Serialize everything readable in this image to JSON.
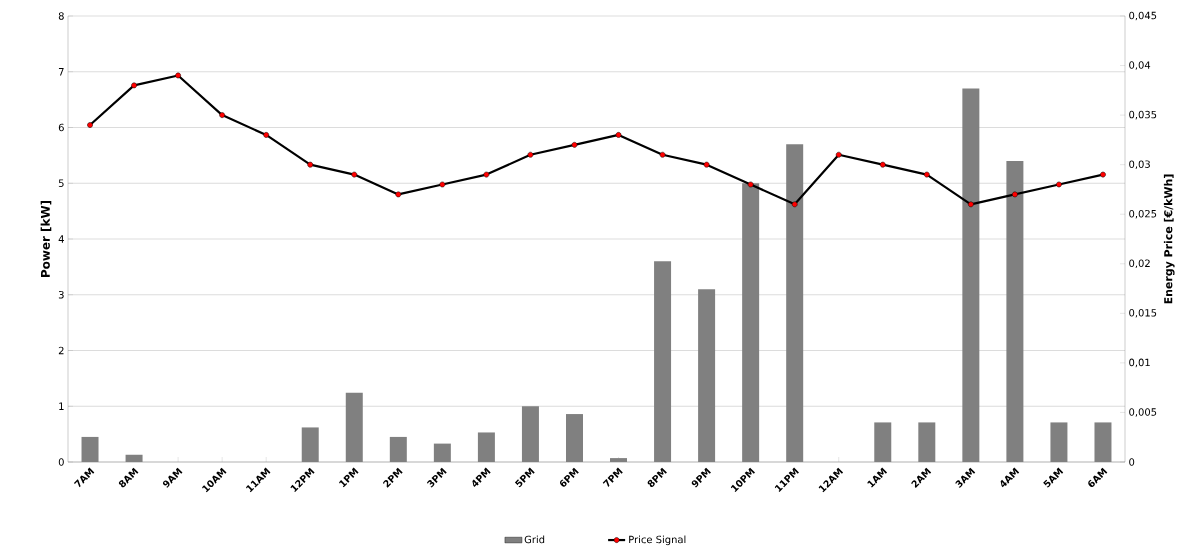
{
  "chart_data": {
    "type": "bar",
    "ylabel": "Power [kW]",
    "y2label": "Energy Price [€/kWh]",
    "categories": [
      "7AM",
      "8AM",
      "9AM",
      "10AM",
      "11AM",
      "12PM",
      "1PM",
      "2PM",
      "3PM",
      "4PM",
      "5PM",
      "6PM",
      "7PM",
      "8PM",
      "9PM",
      "10PM",
      "11PM",
      "12AM",
      "1AM",
      "2AM",
      "3AM",
      "4AM",
      "5AM",
      "6AM"
    ],
    "series": [
      {
        "name": "Grid",
        "color": "#808080",
        "values": [
          0.45,
          0.13,
          0,
          0,
          0,
          0.62,
          1.24,
          0.45,
          0.33,
          0.53,
          1.0,
          0.86,
          0.07,
          3.6,
          3.1,
          5.0,
          5.7,
          0,
          0.71,
          0.71,
          6.7,
          5.4,
          0.71,
          0.71
        ]
      },
      {
        "name": "Price Signal",
        "type": "line",
        "axis": "y2",
        "color": "#000000",
        "marker": "circle",
        "values": [
          0.034,
          0.038,
          0.039,
          0.035,
          0.033,
          0.03,
          0.029,
          0.027,
          0.028,
          0.029,
          0.031,
          0.032,
          0.033,
          0.031,
          0.03,
          0.028,
          0.026,
          0.031,
          0.03,
          0.029,
          0.026,
          0.027,
          0.028,
          0.029
        ]
      }
    ],
    "ylim": [
      0,
      8
    ],
    "yticks": [
      0,
      1,
      2,
      3,
      4,
      5,
      6,
      7,
      8
    ],
    "y2lim": [
      0,
      0.045
    ],
    "y2ticks": [
      {
        "value": 0,
        "label": "0"
      },
      {
        "value": 0.005,
        "label": "0,005"
      },
      {
        "value": 0.01,
        "label": "0,01"
      },
      {
        "value": 0.015,
        "label": "0,015"
      },
      {
        "value": 0.02,
        "label": "0,02"
      },
      {
        "value": 0.025,
        "label": "0,025"
      },
      {
        "value": 0.03,
        "label": "0,03"
      },
      {
        "value": 0.035,
        "label": "0,035"
      },
      {
        "value": 0.04,
        "label": "0,04"
      },
      {
        "value": 0.045,
        "label": "0,045"
      }
    ],
    "grid": "y",
    "legend": "bottom"
  }
}
